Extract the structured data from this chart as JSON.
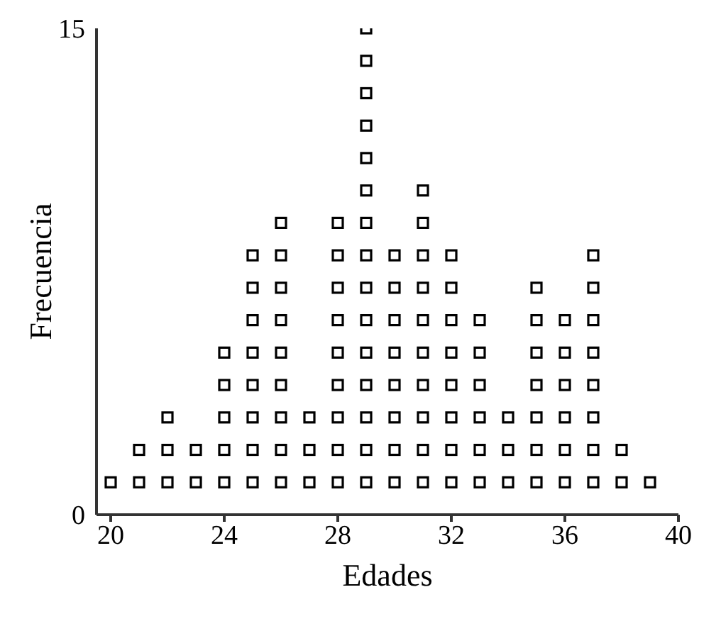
{
  "chart_data": {
    "type": "scatter",
    "xlabel": "Edades",
    "ylabel": "Frecuencia",
    "marker": "square",
    "xlim": [
      19.5,
      40
    ],
    "xticks": [
      20,
      24,
      28,
      32,
      36,
      40
    ],
    "ylim": [
      0,
      15
    ],
    "yticks": [
      0,
      15
    ],
    "grid": false,
    "legend": false,
    "series": [
      {
        "color": "#000000",
        "x": [
          20,
          21,
          21,
          22,
          22,
          22,
          23,
          23,
          24,
          24,
          24,
          24,
          24,
          25,
          25,
          25,
          25,
          25,
          25,
          25,
          25,
          26,
          26,
          26,
          26,
          26,
          26,
          26,
          26,
          26,
          27,
          27,
          27,
          28,
          28,
          28,
          28,
          28,
          28,
          28,
          28,
          28,
          29,
          29,
          29,
          29,
          29,
          29,
          29,
          29,
          29,
          29,
          29,
          29,
          29,
          29,
          29,
          30,
          30,
          30,
          30,
          30,
          30,
          30,
          30,
          31,
          31,
          31,
          31,
          31,
          31,
          31,
          31,
          31,
          31,
          32,
          32,
          32,
          32,
          32,
          32,
          32,
          32,
          33,
          33,
          33,
          33,
          33,
          33,
          34,
          34,
          34,
          35,
          35,
          35,
          35,
          35,
          35,
          35,
          36,
          36,
          36,
          36,
          36,
          36,
          37,
          37,
          37,
          37,
          37,
          37,
          37,
          37,
          38,
          38,
          39
        ],
        "values": [
          1,
          1,
          2,
          1,
          2,
          3,
          1,
          2,
          1,
          2,
          3,
          4,
          5,
          1,
          2,
          3,
          4,
          5,
          6,
          7,
          8,
          1,
          2,
          3,
          4,
          5,
          6,
          7,
          8,
          9,
          1,
          2,
          3,
          1,
          2,
          3,
          4,
          5,
          6,
          7,
          8,
          9,
          1,
          2,
          3,
          4,
          5,
          6,
          7,
          8,
          9,
          10,
          11,
          12,
          13,
          14,
          15,
          1,
          2,
          3,
          4,
          5,
          6,
          7,
          8,
          1,
          2,
          3,
          4,
          5,
          6,
          7,
          8,
          9,
          10,
          1,
          2,
          3,
          4,
          5,
          6,
          7,
          8,
          1,
          2,
          3,
          4,
          5,
          6,
          1,
          2,
          3,
          1,
          2,
          3,
          4,
          5,
          6,
          7,
          1,
          2,
          3,
          4,
          5,
          6,
          1,
          2,
          3,
          4,
          5,
          6,
          7,
          8,
          1,
          2,
          1
        ]
      }
    ]
  }
}
